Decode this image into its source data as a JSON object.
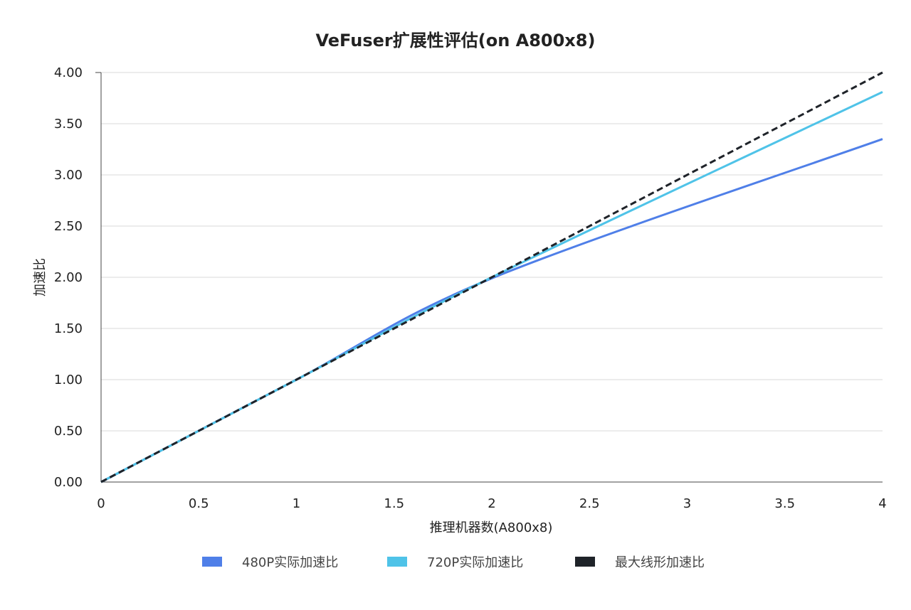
{
  "chart_data": {
    "type": "line",
    "title": "VeFuser扩展性评估(on A800x8)",
    "xlabel": "推理机器数(A800x8)",
    "ylabel": "加速比",
    "xlim": [
      0,
      4
    ],
    "ylim": [
      0,
      4
    ],
    "x_ticks": [
      "0",
      "0.5",
      "1",
      "1.5",
      "2",
      "2.5",
      "3",
      "3.5",
      "4"
    ],
    "y_ticks": [
      "0.00",
      "0.50",
      "1.00",
      "1.50",
      "2.00",
      "2.50",
      "3.00",
      "3.50",
      "4.00"
    ],
    "grid": "horizontal",
    "legend_position": "bottom",
    "series": [
      {
        "name": "480P实际加速比",
        "color": "#4f7fe8",
        "dashed": false,
        "x": [
          0,
          1,
          2,
          4
        ],
        "y": [
          0,
          1.0,
          1.99,
          3.35
        ]
      },
      {
        "name": "720P实际加速比",
        "color": "#4fc3e8",
        "dashed": false,
        "x": [
          0,
          1,
          2,
          4
        ],
        "y": [
          0,
          1.0,
          2.0,
          3.81
        ]
      },
      {
        "name": "最大线形加速比",
        "color": "#1f2329",
        "dashed": true,
        "x": [
          0,
          1,
          2,
          4
        ],
        "y": [
          0,
          1.0,
          2.0,
          4.0
        ]
      }
    ]
  }
}
